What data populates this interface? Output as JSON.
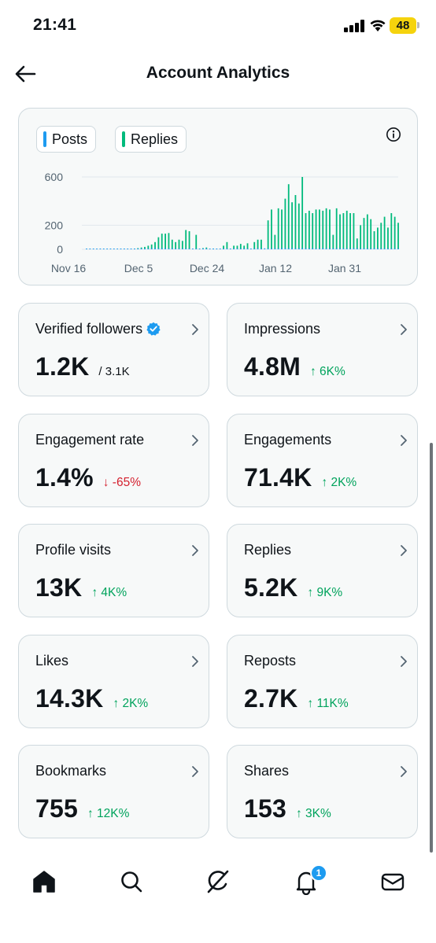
{
  "status_bar": {
    "time": "21:41",
    "battery": "48"
  },
  "header": {
    "title": "Account Analytics",
    "back_icon": "arrow-left-icon"
  },
  "chart": {
    "legend": [
      {
        "label": "Posts",
        "color": "#1d9bf0"
      },
      {
        "label": "Replies",
        "color": "#00ba7c"
      }
    ],
    "info_icon": "info-icon"
  },
  "chart_data": {
    "type": "bar",
    "grid": true,
    "ylim": [
      0,
      650
    ],
    "y_ticks": [
      "600",
      "200",
      "0"
    ],
    "y_tick_values": [
      600,
      200,
      0
    ],
    "x_ticks": [
      "Nov 16",
      "Dec 5",
      "Dec 24",
      "Jan 12",
      "Jan 31"
    ],
    "x_tick_positions": [
      0,
      19,
      38,
      57,
      76
    ],
    "series": [
      {
        "name": "Posts",
        "color": "#1d9bf0",
        "values": [
          2,
          3,
          2,
          2,
          3,
          2,
          3,
          2,
          3,
          3,
          2,
          3,
          4,
          3,
          3,
          4,
          4,
          5,
          6,
          8,
          10,
          8,
          8,
          9,
          7,
          8,
          6,
          5,
          4,
          3,
          6,
          5,
          5,
          4,
          4,
          5,
          6,
          5,
          4,
          4,
          6,
          5,
          5,
          5,
          6,
          7,
          7,
          6,
          6,
          6,
          8,
          7,
          8,
          7,
          7,
          8,
          8,
          9,
          10,
          9,
          9,
          8,
          9,
          9,
          9,
          8,
          8,
          7,
          7,
          8,
          8,
          7,
          7,
          8,
          8,
          7,
          7,
          7,
          8,
          8,
          7,
          7,
          7,
          7,
          8,
          8,
          7,
          7,
          7,
          7,
          7,
          7
        ]
      },
      {
        "name": "Replies",
        "color": "#00ba7c",
        "values": [
          0,
          0,
          0,
          0,
          0,
          0,
          0,
          0,
          0,
          0,
          0,
          0,
          0,
          0,
          5,
          10,
          15,
          20,
          30,
          40,
          60,
          100,
          130,
          130,
          135,
          80,
          60,
          80,
          70,
          160,
          150,
          0,
          120,
          0,
          10,
          15,
          0,
          5,
          0,
          0,
          30,
          60,
          0,
          30,
          30,
          45,
          30,
          50,
          0,
          60,
          80,
          80,
          0,
          240,
          330,
          120,
          340,
          330,
          420,
          540,
          390,
          450,
          380,
          600,
          300,
          320,
          300,
          330,
          330,
          320,
          340,
          330,
          120,
          340,
          290,
          300,
          320,
          300,
          300,
          90,
          200,
          260,
          290,
          250,
          150,
          180,
          220,
          270,
          180,
          300,
          270,
          220
        ]
      }
    ]
  },
  "stats": [
    {
      "label": "Verified followers",
      "value": "1.2K",
      "sub": "/ 3.1K",
      "delta": "",
      "direction": "none",
      "verified": true
    },
    {
      "label": "Impressions",
      "value": "4.8M",
      "sub": "",
      "delta": "↑ 6K%",
      "direction": "up"
    },
    {
      "label": "Engagement rate",
      "value": "1.4%",
      "sub": "",
      "delta": "↓ -65%",
      "direction": "down"
    },
    {
      "label": "Engagements",
      "value": "71.4K",
      "sub": "",
      "delta": "↑ 2K%",
      "direction": "up"
    },
    {
      "label": "Profile visits",
      "value": "13K",
      "sub": "",
      "delta": "↑ 4K%",
      "direction": "up"
    },
    {
      "label": "Replies",
      "value": "5.2K",
      "sub": "",
      "delta": "↑ 9K%",
      "direction": "up"
    },
    {
      "label": "Likes",
      "value": "14.3K",
      "sub": "",
      "delta": "↑ 2K%",
      "direction": "up"
    },
    {
      "label": "Reposts",
      "value": "2.7K",
      "sub": "",
      "delta": "↑ 11K%",
      "direction": "up"
    },
    {
      "label": "Bookmarks",
      "value": "755",
      "sub": "",
      "delta": "↑ 12K%",
      "direction": "up"
    },
    {
      "label": "Shares",
      "value": "153",
      "sub": "",
      "delta": "↑ 3K%",
      "direction": "up"
    }
  ],
  "bottom_nav": {
    "items": [
      "home-icon",
      "search-icon",
      "grok-icon",
      "notifications-icon",
      "messages-icon"
    ],
    "notification_count": "1"
  },
  "colors": {
    "up": "#00a35c",
    "down": "#d4202e",
    "accent": "#1d9bf0",
    "card_border": "#cfd9de"
  }
}
